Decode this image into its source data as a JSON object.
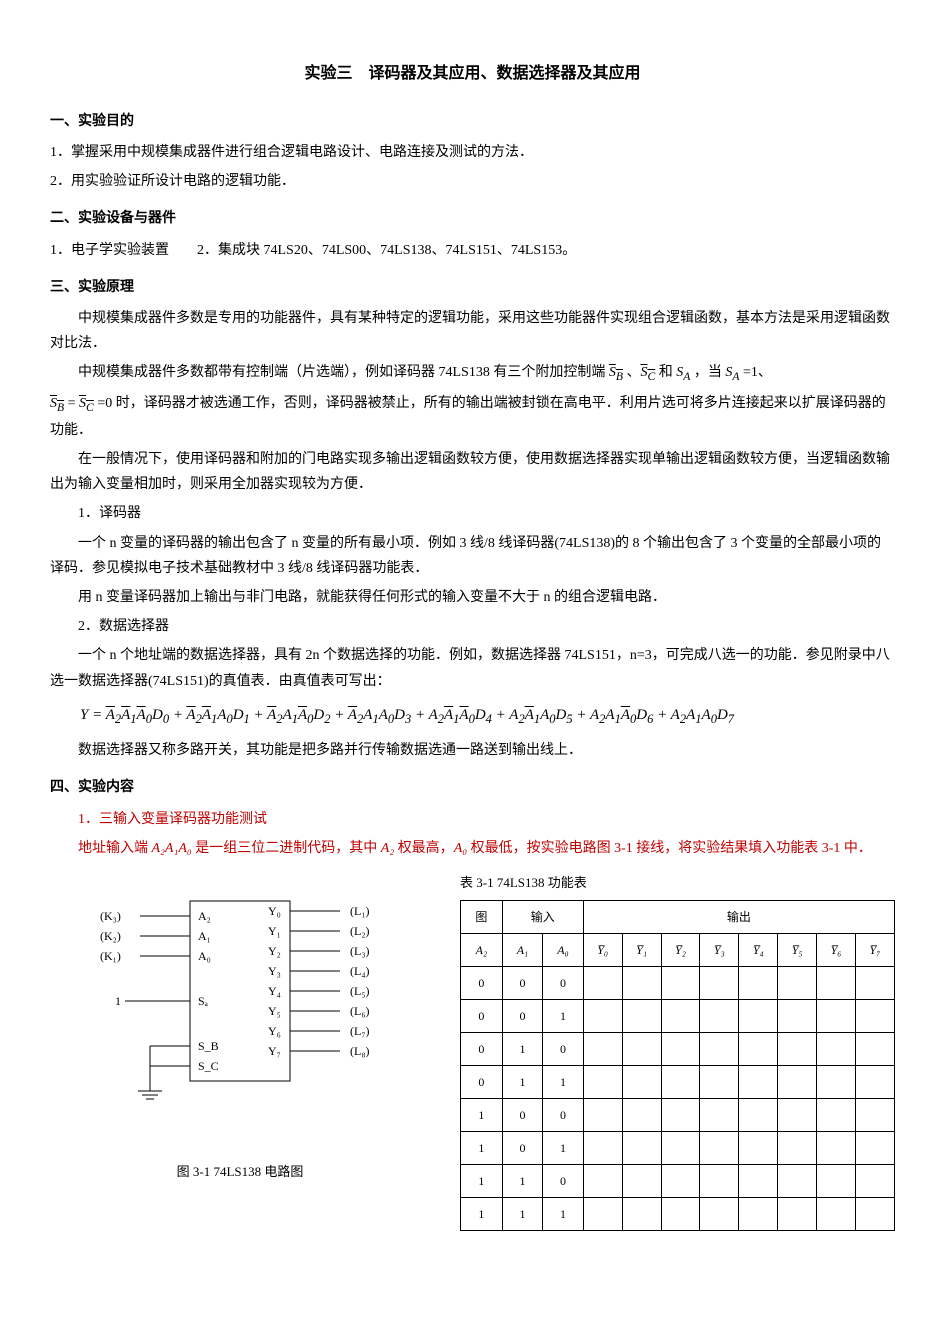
{
  "title": "实验三　译码器及其应用、数据选择器及其应用",
  "sec1": {
    "header": "一、实验目的",
    "p1": "1．掌握采用中规模集成器件进行组合逻辑电路设计、电路连接及测试的方法．",
    "p2": "2．用实验验证所设计电路的逻辑功能．"
  },
  "sec2": {
    "header": "二、实验设备与器件",
    "p1": "1．电子学实验装置　　2．集成块 74LS20、74LS00、74LS138、74LS151、74LS153。"
  },
  "sec3": {
    "header": "三、实验原理",
    "p1": "中规模集成器件多数是专用的功能器件，具有某种特定的逻辑功能，采用这些功能器件实现组合逻辑函数，基本方法是采用逻辑函数对比法．",
    "p2a": "中规模集成器件多数都带有控制端（片选端），例如译码器 74LS138 有三个附加控制端 ",
    "p2b": "，当 ",
    "p2c": " =1、",
    "p3a": " =0 时，译码器才被选通工作，否则，译码器被禁止，所有的输出端被封锁在高电平．利用片选可将多片连接起来以扩展译码器的功能．",
    "p4": "在一般情况下，使用译码器和附加的门电路实现多输出逻辑函数较方便，使用数据选择器实现单输出逻辑函数较方便，当逻辑函数输出为输入变量相加时，则采用全加器实现较为方便．",
    "p5": "1．译码器",
    "p6": "一个 n 变量的译码器的输出包含了 n 变量的所有最小项．例如 3 线/8 线译码器(74LS138)的 8 个输出包含了 3 个变量的全部最小项的译码．参见模拟电子技术基础教材中 3 线/8 线译码器功能表．",
    "p7": "用 n 变量译码器加上输出与非门电路，就能获得任何形式的输入变量不大于 n 的组合逻辑电路．",
    "p8": "2．数据选择器",
    "p9": "一个 n 个地址端的数据选择器，具有 2n 个数据选择的功能．例如，数据选择器 74LS151，n=3，可完成八选一的功能．参见附录中八选一数据选择器(74LS151)的真值表．由真值表可写出：",
    "p10": "数据选择器又称多路开关，其功能是把多路并行传输数据选通一路送到输出线上．"
  },
  "sec4": {
    "header": "四、实验内容",
    "p1": "1．三输入变量译码器功能测试",
    "p2a": "地址输入端 ",
    "p2b": " 是一组三位二进制代码，其中 ",
    "p2c": " 权最高，",
    "p2d": " 权最低，按实验电路图 3-1 接线，将实验结果填入功能表 3-1 中．",
    "addr": "A₂A₁A₀",
    "a2": "A₂",
    "a0": "A₀"
  },
  "circuit": {
    "caption": "图 3-1 74LS138 电路图",
    "left_labels": [
      "(K₃)",
      "(K₂)",
      "(K₁)",
      "1"
    ],
    "left_pins": [
      "A₂",
      "A₁",
      "A₀",
      "Sₐ",
      "S_B",
      "S_C"
    ],
    "right_pins": [
      "Y₀",
      "Y₁",
      "Y₂",
      "Y₃",
      "Y₄",
      "Y₅",
      "Y₆",
      "Y₇"
    ],
    "right_labels": [
      "(L₁)",
      "(L₂)",
      "(L₃)",
      "(L₄)",
      "(L₅)",
      "(L₆)",
      "(L₇)",
      "(L₈)"
    ]
  },
  "table": {
    "caption": "表 3-1 74LS138 功能表",
    "corner": "图",
    "group_in": "输入",
    "group_out": "输出",
    "col_in": [
      "A₂",
      "A₁",
      "A₀"
    ],
    "col_out": [
      "Y̅₀",
      "Y̅₁",
      "Y̅₂",
      "Y̅₃",
      "Y̅₄",
      "Y̅₅",
      "Y̅₆",
      "Y̅₇"
    ],
    "rows": [
      [
        "0",
        "0",
        "0",
        "",
        "",
        "",
        "",
        "",
        "",
        "",
        ""
      ],
      [
        "0",
        "0",
        "1",
        "",
        "",
        "",
        "",
        "",
        "",
        "",
        ""
      ],
      [
        "0",
        "1",
        "0",
        "",
        "",
        "",
        "",
        "",
        "",
        "",
        ""
      ],
      [
        "0",
        "1",
        "1",
        "",
        "",
        "",
        "",
        "",
        "",
        "",
        ""
      ],
      [
        "1",
        "0",
        "0",
        "",
        "",
        "",
        "",
        "",
        "",
        "",
        ""
      ],
      [
        "1",
        "0",
        "1",
        "",
        "",
        "",
        "",
        "",
        "",
        "",
        ""
      ],
      [
        "1",
        "1",
        "0",
        "",
        "",
        "",
        "",
        "",
        "",
        "",
        ""
      ],
      [
        "1",
        "1",
        "1",
        "",
        "",
        "",
        "",
        "",
        "",
        "",
        ""
      ]
    ]
  },
  "formula_vars": {
    "SB": "S",
    "SB_sub": "B",
    "SC": "S",
    "SC_sub": "C",
    "SA": "S",
    "SA_sub": "A"
  },
  "colors": {
    "text": "#000000",
    "red": "#c00000",
    "bg": "#ffffff",
    "border": "#000000"
  }
}
